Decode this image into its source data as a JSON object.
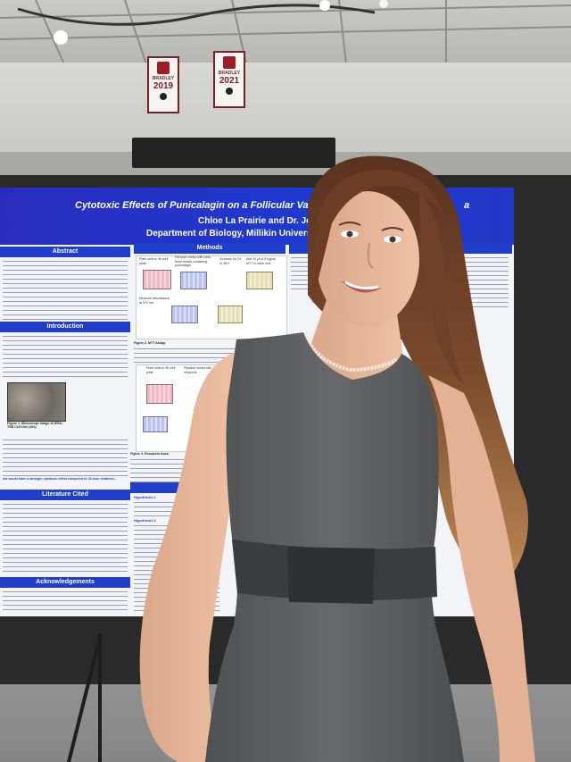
{
  "banners": [
    {
      "small": "BRADLEY",
      "year": "2019"
    },
    {
      "small": "BRADLEY",
      "year": "2021"
    }
  ],
  "poster": {
    "title": "Cytotoxic Effects of Punicalagin on a Follicular Variant of",
    "title_end": "a",
    "authors": "Chloe La Prairie and Dr. Jennifer Schroede",
    "department": "Department of Biology, Millikin University, Decatu",
    "sections": {
      "abstract": "Abstract",
      "methods": "Methods",
      "introduction": "Introduction",
      "literature_cited": "Literature Cited",
      "acknowledgements": "Acknowledgements"
    },
    "figure_captions": {
      "fig1": "Figure 1. Microscope image of WSA-TSB Cell Line (20x)",
      "fig2": "Figure 2. MTT Assay.",
      "fig3": "Figure 3. Resazurin Assa"
    },
    "method_steps": {
      "plate": "Plate cells in 96 well plate",
      "remove": "Remove media with cells, fresh media containing punicalagin",
      "incubate": "Incubate for 24 or 48 h",
      "add": "Add 10 μl of 5 mg/ml MTT to each well",
      "measure": "Measure absorbance at 570 nm",
      "replace": "Replace media with resazurin"
    },
    "hypotheses": {
      "h1": "Hypothesis 1",
      "h2": "Hypothesis 2"
    },
    "intro_tail": "If punicalagin would have a stronger cytotoxic effect on PTC compared to ...",
    "bold_line": "nts would have a stronger cytotoxic effect compared to 24-hour treatmen..."
  },
  "colors": {
    "poster_blue": "#1f3ec9",
    "dress": "#5b5d5f",
    "hair": "#7a4a2c"
  }
}
